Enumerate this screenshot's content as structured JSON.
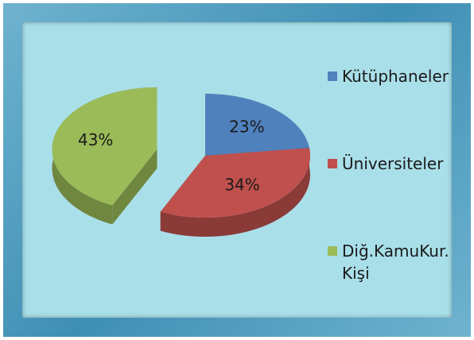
{
  "chart_data": {
    "type": "pie",
    "categories": [
      "Kütüphaneler",
      "Üniversiteler",
      "Diğ.KamuKur. Kişi"
    ],
    "values": [
      23,
      34,
      43
    ],
    "value_labels": [
      "23%",
      "34%",
      "43%"
    ],
    "colors": [
      "#4f81bd",
      "#c0504d",
      "#9bbb59"
    ],
    "legend": "right"
  }
}
